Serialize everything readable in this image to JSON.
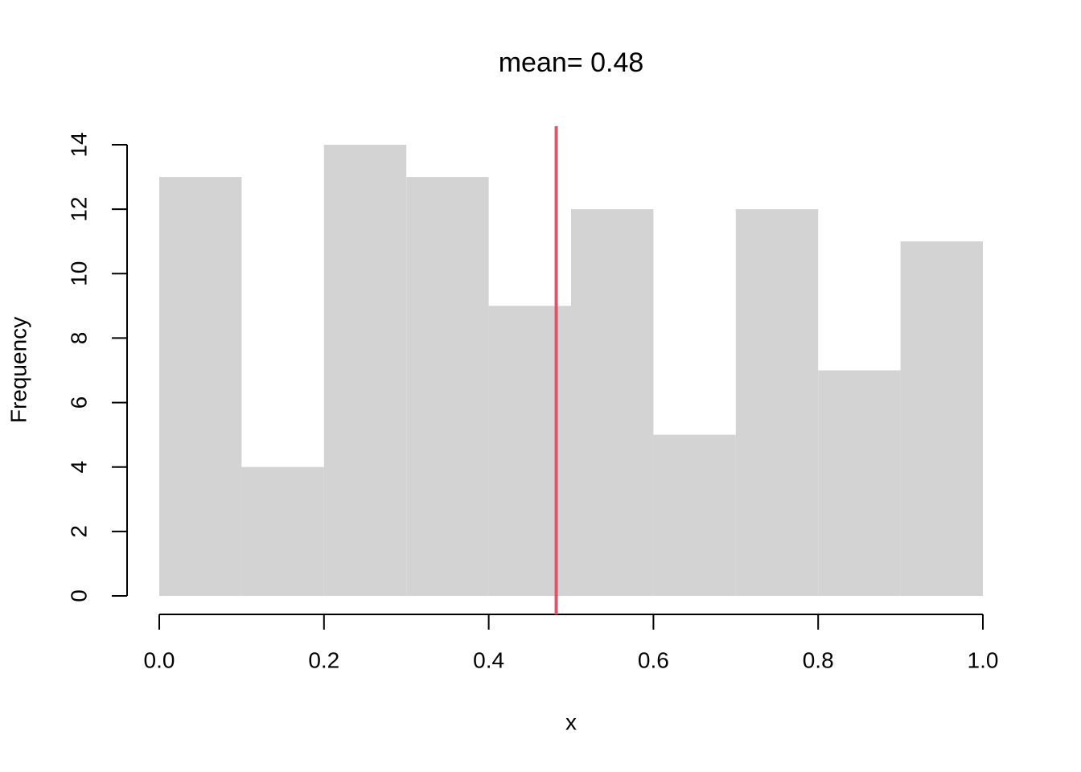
{
  "chart_data": {
    "type": "histogram",
    "title": "mean= 0.48",
    "x_label": "x",
    "y_label": "Frequency",
    "bins": [
      0,
      0.1,
      0.2,
      0.3,
      0.4,
      0.5,
      0.6,
      0.7,
      0.8,
      0.9,
      1
    ],
    "values": [
      13,
      4,
      14,
      13,
      9,
      12,
      5,
      12,
      7,
      11
    ],
    "color": "#d3d3d3",
    "xlim": [
      0,
      1
    ],
    "xticks": [
      {
        "value": 0,
        "label": "0.0"
      },
      0.2,
      0.4,
      0.6,
      0.8,
      {
        "value": 1,
        "label": "1.0"
      }
    ],
    "ylim": [
      0,
      14
    ],
    "yticks": [
      0,
      2,
      4,
      6,
      8,
      10,
      12,
      14
    ],
    "mean_line": {
      "value": 0.482,
      "color": "#df536b"
    }
  }
}
